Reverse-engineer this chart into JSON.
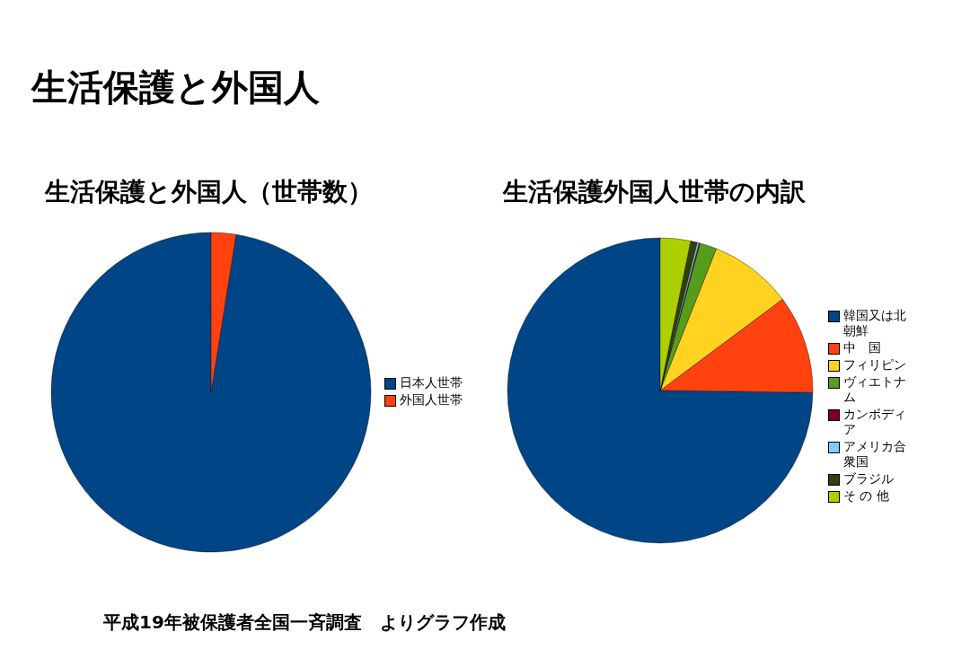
{
  "chart_data": [
    {
      "type": "pie",
      "title": "生活保護と外国人（世帯数）",
      "annotations": [
        "生活保護と外国人"
      ],
      "legend": "right",
      "categories": [
        "日本人世帯",
        "外国人世帯"
      ],
      "values": [
        97.5,
        2.5
      ],
      "colors": [
        "#004586",
        "#ff420e"
      ]
    },
    {
      "type": "pie",
      "title": "生活保護外国人世帯の内訳",
      "annotations": [
        "平成19年被保護者全国一斉調査　よりグラフ作成"
      ],
      "legend": "right",
      "categories": [
        "韓国又は北朝鮮",
        "中　国",
        "フィリピン",
        "ヴィエトナム",
        "カンボディア",
        "アメリカ合衆国",
        "ブラジル",
        "そ の 他"
      ],
      "values": [
        74.8,
        10.4,
        8.8,
        1.8,
        0.1,
        0.2,
        0.7,
        3.2
      ],
      "colors": [
        "#004586",
        "#ff420e",
        "#ffd320",
        "#579d1c",
        "#7e0021",
        "#83caff",
        "#314004",
        "#aecf00"
      ]
    }
  ]
}
